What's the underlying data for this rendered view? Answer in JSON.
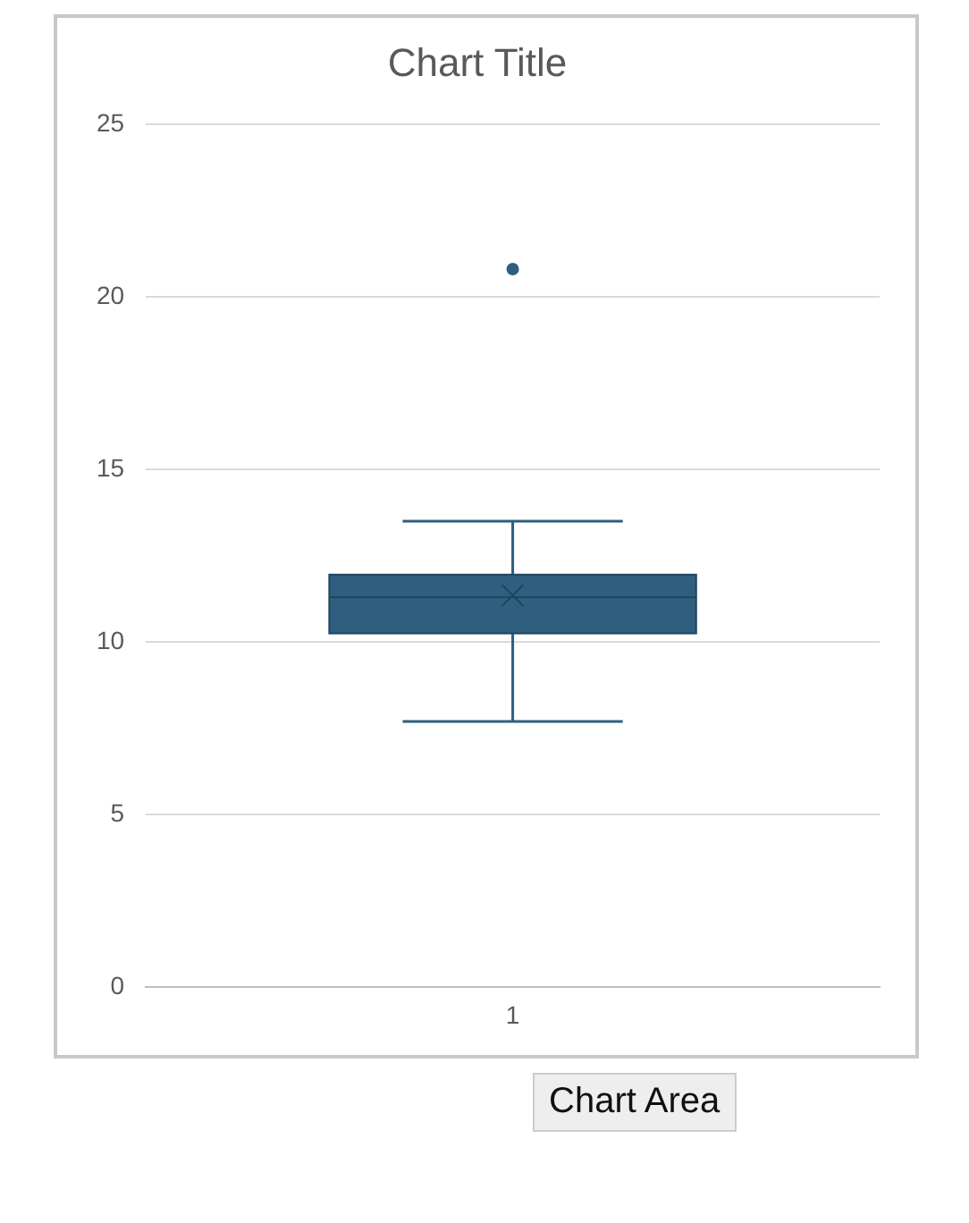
{
  "chart_data": {
    "type": "box",
    "title": "Chart Title",
    "categories": [
      "1"
    ],
    "boxes": [
      {
        "low": 7.7,
        "q1": 10.25,
        "median": 11.3,
        "q3": 11.95,
        "high": 13.5,
        "mean": 11.35,
        "outliers": [
          20.8
        ]
      }
    ],
    "color": "#2e5f7f",
    "ylim": [
      0,
      25
    ],
    "yticks": [
      0,
      5,
      10,
      15,
      20,
      25
    ],
    "grid": "y",
    "legend": false,
    "annotations": [
      "Chart Area"
    ]
  }
}
